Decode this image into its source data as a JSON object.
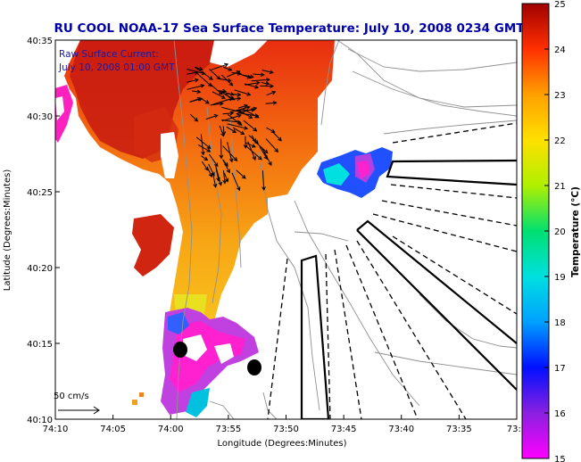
{
  "title": "RU COOL  NOAA-17  Sea Surface Temperature:  July 10, 2008 0234 GMT",
  "annotation": {
    "line1": "Raw Surface Current:",
    "line2": "July 10, 2008 01:00 GMT"
  },
  "scale_label": "50 cm/s",
  "xlabel": "Longitude (Degrees:Minutes)",
  "ylabel": "Latitude (Degrees:Minutes)",
  "x_ticks": [
    "74:10",
    "74:05",
    "74:00",
    "73:55",
    "73:50",
    "73:45",
    "73:40",
    "73:35",
    "73:3"
  ],
  "y_ticks": [
    "40:35",
    "40:30",
    "40:25",
    "40:20",
    "40:15",
    "40:10"
  ],
  "colorbar": {
    "label": "Temperature (°C)",
    "ticks": [
      "25",
      "24",
      "23",
      "22",
      "21",
      "20",
      "19",
      "18",
      "17",
      "16",
      "15"
    ],
    "min": 15,
    "max": 25
  },
  "colors": {
    "title": "#0000a8",
    "annotation": "#1a1aa0",
    "coast_gray": "#909090"
  }
}
